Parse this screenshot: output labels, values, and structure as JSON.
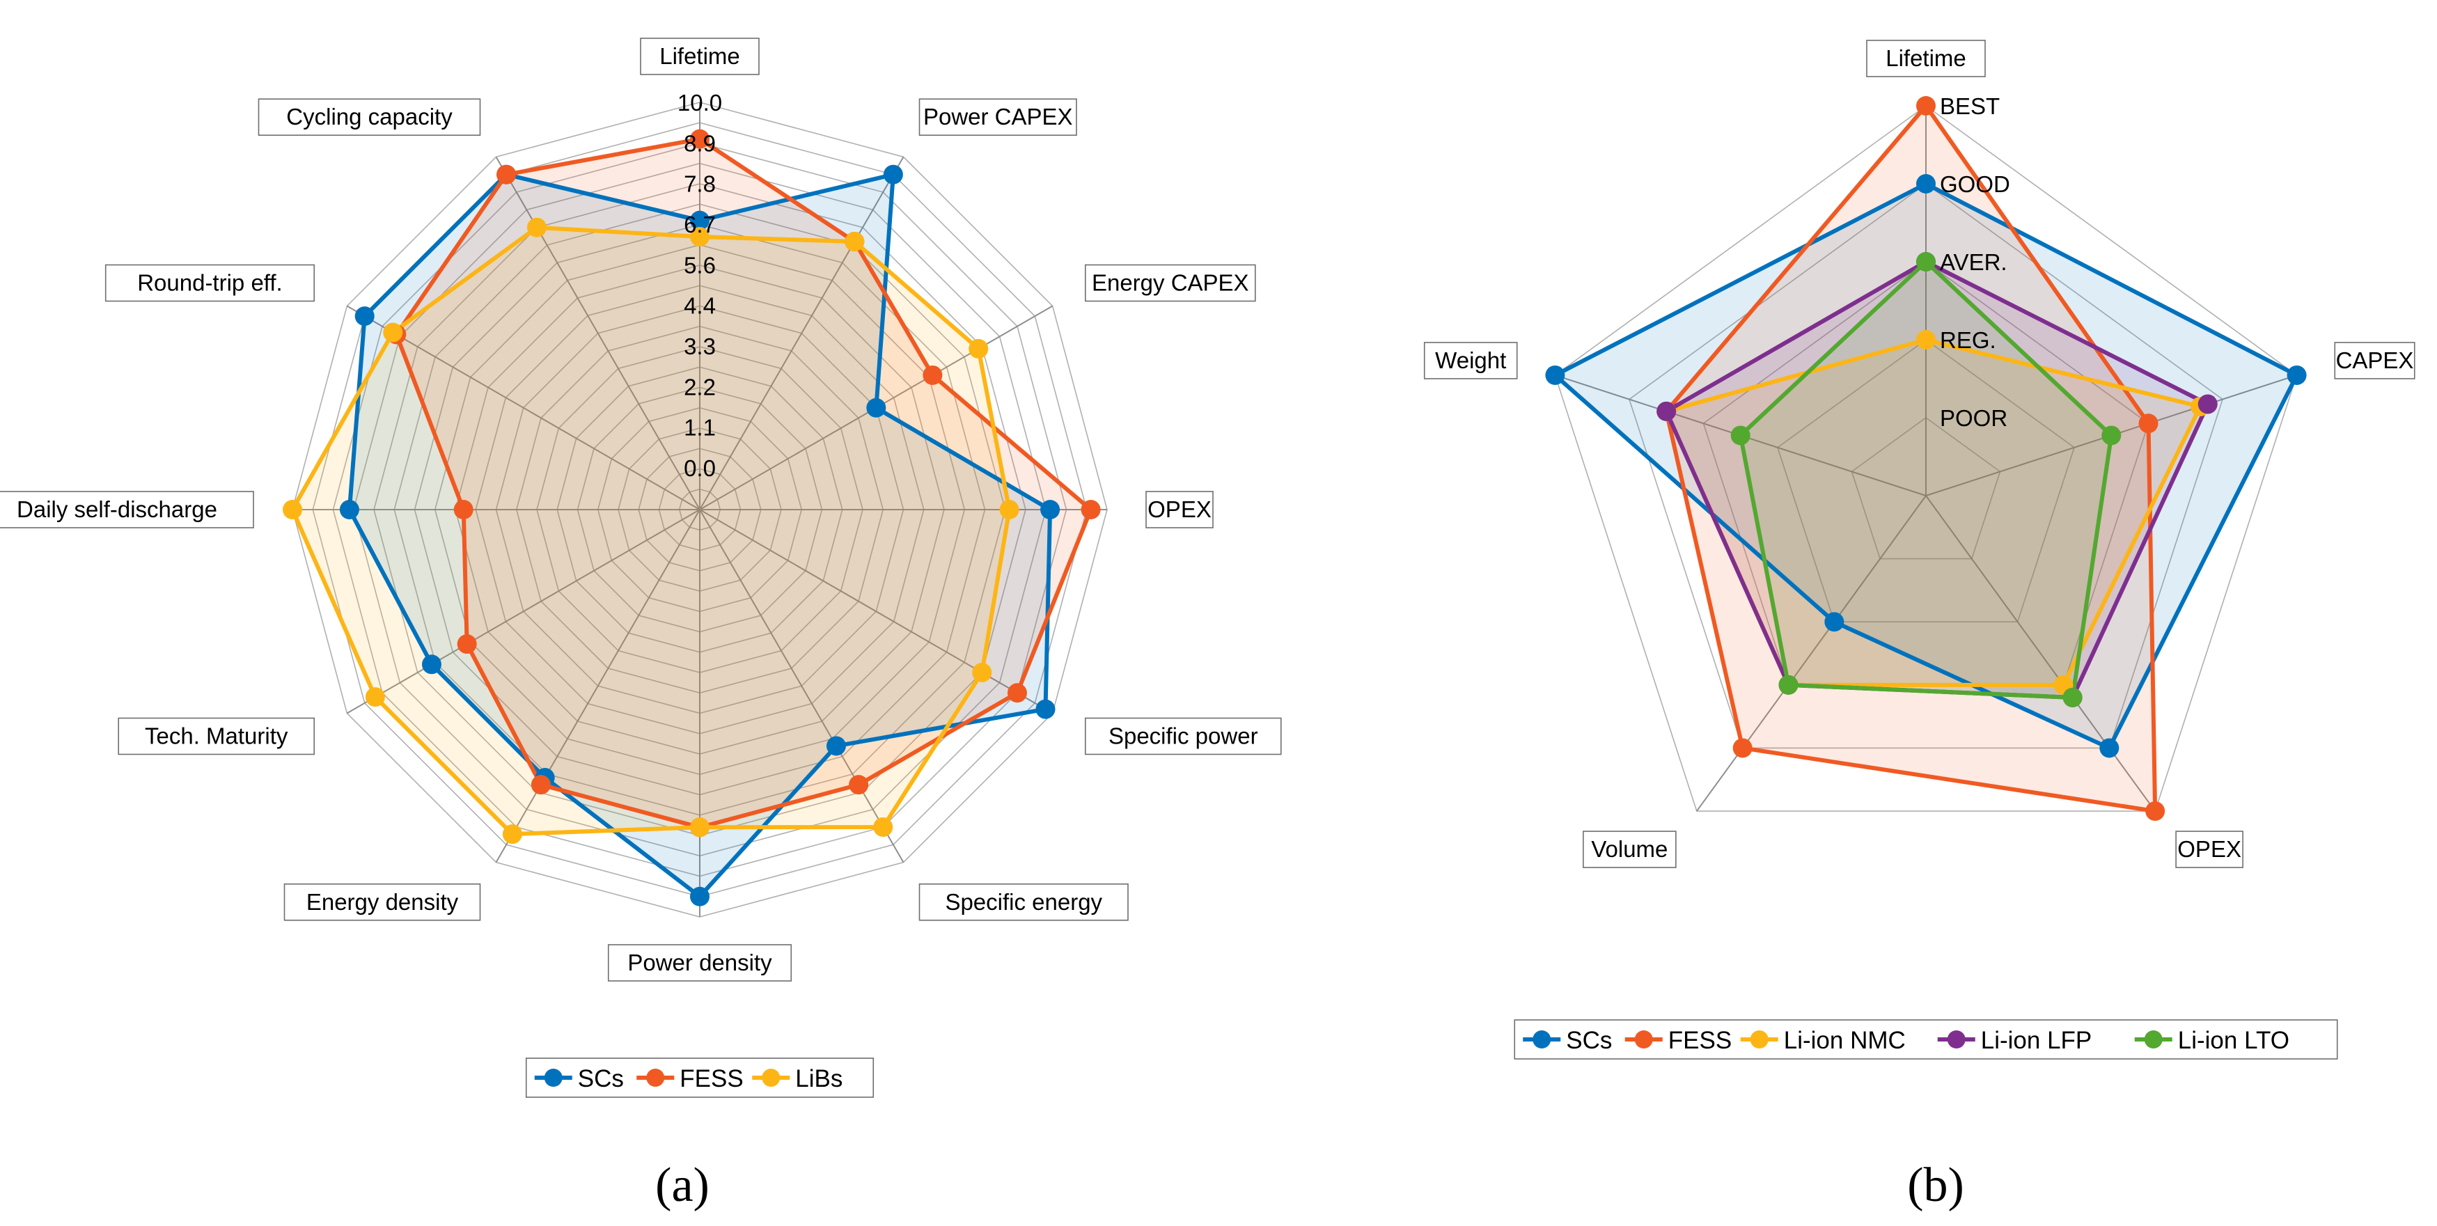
{
  "colors": {
    "SCs": "#0072BD",
    "FESS": "#F05A22",
    "LiBs": "#FDB515",
    "Li-ion NMC": "#FDB515",
    "Li-ion LFP": "#7E2F8E",
    "Li-ion LTO": "#53A830"
  },
  "chart_data": [
    {
      "type": "radar",
      "panel_label": "(a)",
      "axes": [
        "Lifetime",
        "Power CAPEX",
        "Energy CAPEX",
        "OPEX",
        "Specific power",
        "Specific energy",
        "Power density",
        "Energy density",
        "Tech. Maturity",
        "Daily self-discharge",
        "Round-trip eff.",
        "Cycling capacity"
      ],
      "range": [
        0,
        10
      ],
      "tick_labels": [
        "0.0",
        "1.1",
        "2.2",
        "3.3",
        "4.4",
        "5.6",
        "6.7",
        "7.8",
        "8.9",
        "10.0"
      ],
      "grid": true,
      "legend": "bottom",
      "series": [
        {
          "name": "SCs",
          "values": [
            7.1,
            9.5,
            5.0,
            8.6,
            9.8,
            6.7,
            9.5,
            7.6,
            7.6,
            8.6,
            9.5,
            9.5
          ]
        },
        {
          "name": "FESS",
          "values": [
            9.1,
            7.6,
            6.6,
            9.6,
            9.0,
            7.8,
            7.8,
            7.8,
            6.6,
            5.8,
            8.6,
            9.5
          ]
        },
        {
          "name": "LiBs",
          "values": [
            6.7,
            7.6,
            7.9,
            7.6,
            8.0,
            9.0,
            7.8,
            9.2,
            9.2,
            10.0,
            8.7,
            8.0
          ]
        }
      ]
    },
    {
      "type": "radar",
      "panel_label": "(b)",
      "axes": [
        "Lifetime",
        "CAPEX",
        "OPEX",
        "Volume",
        "Weight"
      ],
      "range": [
        0,
        5
      ],
      "tick_labels": [
        "POOR",
        "REG.",
        "AVER.",
        "GOOD",
        "BEST"
      ],
      "grid": true,
      "legend": "bottom",
      "series": [
        {
          "name": "SCs",
          "values": [
            4,
            5,
            4,
            2,
            5
          ]
        },
        {
          "name": "FESS",
          "values": [
            5,
            3,
            5,
            4,
            3.5
          ]
        },
        {
          "name": "Li-ion NMC",
          "values": [
            2,
            3.7,
            3,
            3,
            3.5
          ]
        },
        {
          "name": "Li-ion LFP",
          "values": [
            3,
            3.8,
            3.2,
            3,
            3.5
          ]
        },
        {
          "name": "Li-ion LTO",
          "values": [
            3,
            2.5,
            3.2,
            3,
            2.5
          ]
        }
      ]
    }
  ]
}
